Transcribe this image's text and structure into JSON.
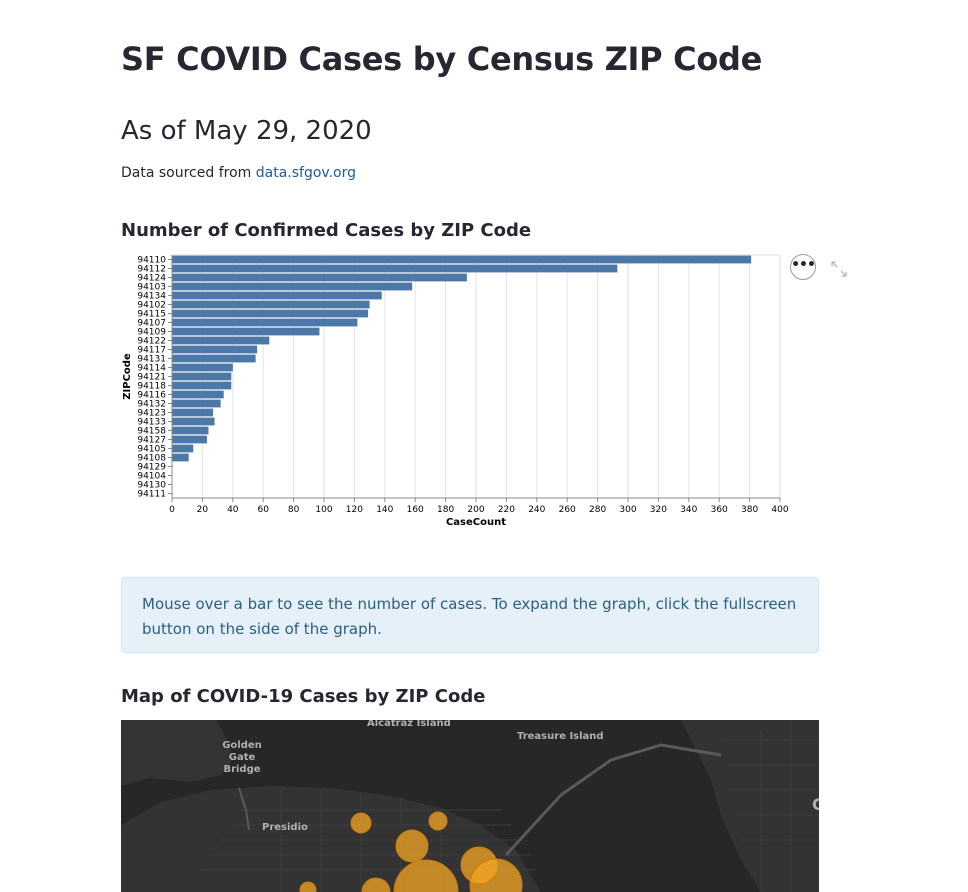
{
  "title": "SF COVID Cases by Census ZIP Code",
  "subtitle": "As of May 29, 2020",
  "source": {
    "prefix": "Data sourced from ",
    "link_text": "data.sfgov.org"
  },
  "chart_heading": "Number of Confirmed Cases by ZIP Code",
  "chart_data": {
    "type": "bar",
    "orientation": "horizontal",
    "title": "",
    "xlabel": "CaseCount",
    "ylabel": "ZIPCode",
    "xlim": [
      0,
      400
    ],
    "xticks": [
      0,
      20,
      40,
      60,
      80,
      100,
      120,
      140,
      160,
      180,
      200,
      220,
      240,
      260,
      280,
      300,
      320,
      340,
      360,
      380,
      400
    ],
    "grid": true,
    "color": "#4c78a8",
    "categories": [
      "94110",
      "94112",
      "94124",
      "94103",
      "94134",
      "94102",
      "94115",
      "94107",
      "94109",
      "94122",
      "94117",
      "94131",
      "94114",
      "94121",
      "94118",
      "94116",
      "94132",
      "94123",
      "94133",
      "94158",
      "94127",
      "94105",
      "94108",
      "94129",
      "94104",
      "94130",
      "94111"
    ],
    "values": [
      381,
      293,
      194,
      158,
      138,
      130,
      129,
      122,
      97,
      64,
      56,
      55,
      40,
      39,
      39,
      34,
      32,
      27,
      28,
      24,
      23,
      14,
      11,
      0,
      0,
      0,
      0
    ]
  },
  "chart_menu": {
    "icon": "more-dots-icon",
    "label": "•••"
  },
  "chart_fullscreen": {
    "icon": "fullscreen-expand-icon"
  },
  "info_text": "Mouse over a bar to see the number of cases. To expand the graph, click the fullscreen button on the side of the graph.",
  "map_heading": "Map of COVID-19 Cases by ZIP Code",
  "map": {
    "labels": {
      "alcatraz": "Alcatraz Island",
      "treasure": "Treasure Island",
      "golden_gate": "Golden Gate Bridge",
      "presidio": "Presidio",
      "edge": "O"
    },
    "bubble_color": "#f5a623"
  },
  "colors": {
    "accent": "#1c5c9c",
    "info_bg": "#e6f0f8",
    "info_text": "#2b5f7e",
    "map_bg": "#272727"
  }
}
